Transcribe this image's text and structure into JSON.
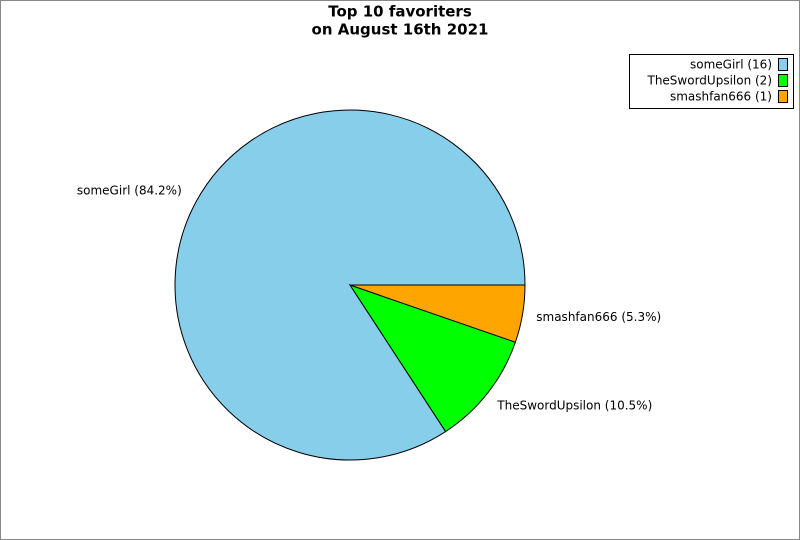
{
  "chart_data": {
    "type": "pie",
    "title": "Top 10 favoriters",
    "subtitle": "on August 16th 2021",
    "categories": [
      "someGirl",
      "TheSwordUpsilon",
      "smashfan666"
    ],
    "values": [
      84.2,
      10.5,
      5.3
    ],
    "value_labels": [
      "someGirl (84.2%)",
      "TheSwordUpsilon (10.5%)",
      "smashfan666 (5.3%)"
    ],
    "legend_labels": [
      "someGirl (16)",
      "TheSwordUpsilon (2)",
      "smashfan666 (1)"
    ],
    "colors": [
      "#87ceeb",
      "#00ff00",
      "#ffa500"
    ],
    "legend": "top-right"
  }
}
